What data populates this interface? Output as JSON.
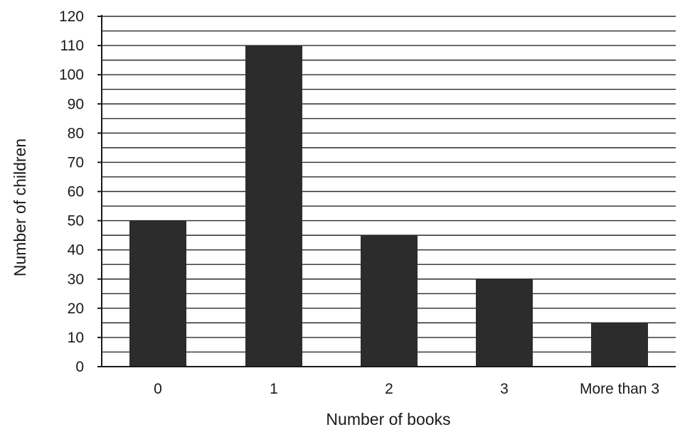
{
  "chart_data": {
    "type": "bar",
    "categories": [
      "0",
      "1",
      "2",
      "3",
      "More than 3"
    ],
    "values": [
      50,
      110,
      45,
      30,
      15
    ],
    "xlabel": "Number of books",
    "ylabel": "Number of children",
    "ylim": [
      0,
      120
    ],
    "yticks": [
      0,
      10,
      20,
      30,
      40,
      50,
      60,
      70,
      80,
      90,
      100,
      110,
      120
    ],
    "minor_gridlines_step": 5,
    "grid": true,
    "legend": "none",
    "colors": {
      "bar": "#2c2c2c",
      "grid": "#2a2a2a",
      "text": "#1a1a1a"
    }
  }
}
